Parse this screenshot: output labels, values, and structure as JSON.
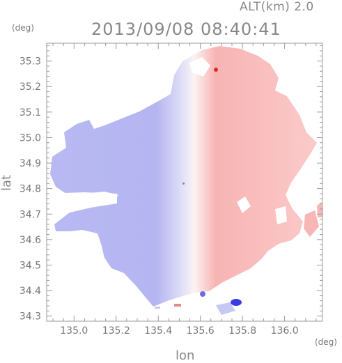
{
  "header": {
    "alt_label": "ALT(km) 2.0",
    "title": "2013/09/08 08:40:41"
  },
  "chart_data": {
    "type": "heatmap",
    "title": "2013/09/08 08:40:41",
    "subtitle": "ALT(km) 2.0",
    "xlabel": "lon",
    "ylabel": "lat",
    "x_unit": "(deg)",
    "y_unit": "(deg)",
    "xlim": [
      134.87,
      136.18
    ],
    "ylim": [
      34.28,
      35.37
    ],
    "x_ticks": [
      "135.0",
      "135.2",
      "135.4",
      "135.6",
      "135.8",
      "136.0"
    ],
    "x_tick_values": [
      135.0,
      135.2,
      135.4,
      135.6,
      135.8,
      136.0
    ],
    "y_ticks": [
      "35.3",
      "35.2",
      "35.1",
      "35.0",
      "34.9",
      "34.8",
      "34.7",
      "34.6",
      "34.5",
      "34.4",
      "34.3"
    ],
    "y_tick_values": [
      35.3,
      35.2,
      35.1,
      35.0,
      34.9,
      34.8,
      34.7,
      34.6,
      34.5,
      34.4,
      34.3
    ],
    "radar_center": [
      135.52,
      34.82
    ],
    "grid": true,
    "colors": {
      "approaching": "#a9abf3",
      "receding": "#f7a6a6",
      "neutral": "#f3f3fb"
    }
  }
}
